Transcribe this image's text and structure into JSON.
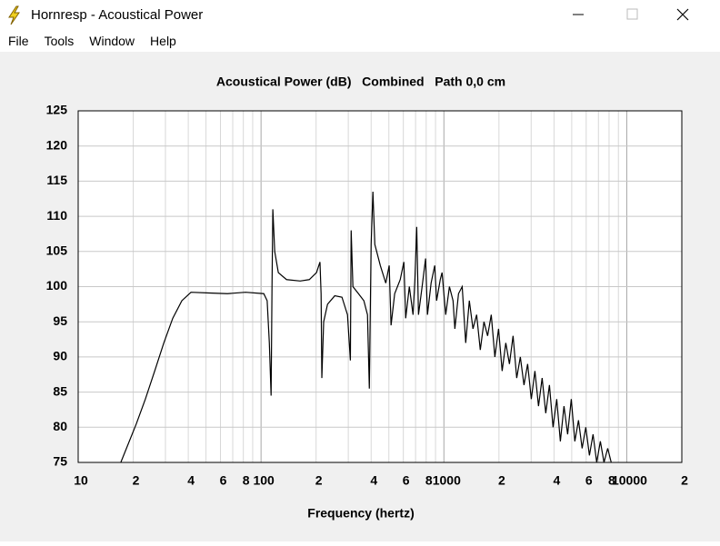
{
  "window": {
    "title": "Hornresp - Acoustical Power",
    "menu": [
      "File",
      "Tools",
      "Window",
      "Help"
    ]
  },
  "chart_data": {
    "type": "line",
    "title": "Acoustical Power (dB)   Combined   Path 0,0 cm",
    "x_label": "Frequency (hertz)",
    "x_scale": "log",
    "xlim": [
      10,
      20000
    ],
    "xticks": [
      10,
      {
        "value": 20,
        "label": "2"
      },
      {
        "value": 40,
        "label": "4"
      },
      {
        "value": 60,
        "label": "6"
      },
      {
        "value": 80,
        "label": "8"
      },
      100,
      {
        "value": 200,
        "label": "2"
      },
      {
        "value": 400,
        "label": "4"
      },
      {
        "value": 600,
        "label": "6"
      },
      {
        "value": 800,
        "label": "8"
      },
      1000,
      {
        "value": 2000,
        "label": "2"
      },
      {
        "value": 4000,
        "label": "4"
      },
      {
        "value": 6000,
        "label": "6"
      },
      {
        "value": 8000,
        "label": "8"
      },
      10000,
      {
        "value": 20000,
        "label": "2"
      }
    ],
    "x_minor_grid": [
      30,
      50,
      70,
      90,
      300,
      500,
      700,
      900,
      3000,
      5000,
      7000,
      9000
    ],
    "ylim": [
      75,
      125
    ],
    "yticks": [
      75,
      80,
      85,
      90,
      95,
      100,
      105,
      110,
      115,
      120,
      125
    ],
    "grid": true,
    "x": [
      17.1,
      20.8,
      23.3,
      26.2,
      29.4,
      32.9,
      36.9,
      41.4,
      52,
      65.5,
      82.3,
      103.5,
      108,
      111,
      112,
      113.5,
      114.8,
      116,
      118.8,
      124.3,
      137.8,
      163.7,
      183.6,
      201,
      210,
      213,
      215,
      220,
      231,
      253,
      277,
      297,
      308,
      311,
      318,
      341,
      365,
      382,
      391,
      400,
      409,
      419,
      449,
      481,
      502,
      514,
      538,
      577,
      604,
      618,
      647,
      678,
      694,
      710,
      726,
      760,
      794,
      813,
      851,
      891,
      912,
      955,
      977,
      1023,
      1072,
      1122,
      1148,
      1202,
      1259,
      1316,
      1377,
      1442,
      1510,
      1581,
      1656,
      1734,
      1815,
      1900,
      1990,
      2082,
      2180,
      2282,
      2389,
      2501,
      2618,
      2741,
      2870,
      3005,
      3146,
      3291,
      3445,
      3606,
      3776,
      3953,
      4139,
      4333,
      4536,
      4749,
      4972,
      5200,
      5445,
      5700,
      5968,
      6248,
      6541,
      6848,
      7170,
      7506,
      7865,
      8222
    ],
    "series": [
      {
        "color": "#000000",
        "values": [
          75,
          80.5,
          84,
          88,
          92,
          95.5,
          98,
          99.2,
          99.1,
          99,
          99.2,
          99,
          98,
          92,
          89,
          84.5,
          100,
          111,
          105,
          102,
          101,
          100.8,
          101,
          102,
          103.5,
          99,
          87,
          95,
          97.5,
          98.7,
          98.5,
          96,
          89.5,
          108,
          100,
          99,
          98,
          96,
          85.5,
          106,
          113.5,
          106,
          103,
          100.5,
          103,
          94.5,
          99,
          101,
          103.5,
          95.5,
          100,
          96,
          101,
          108.5,
          96,
          100,
          104,
          96,
          100.5,
          103,
          98,
          101,
          102,
          96,
          100,
          98,
          94,
          99,
          100,
          92,
          98,
          94,
          96,
          91,
          95,
          93,
          96,
          90,
          94,
          88,
          92,
          89,
          93,
          87,
          90,
          86,
          89,
          84,
          88,
          83,
          87,
          82,
          86,
          80,
          84,
          78,
          83,
          79,
          84,
          78,
          81,
          77,
          80,
          76,
          79,
          75,
          78,
          75,
          77,
          75
        ]
      }
    ]
  }
}
